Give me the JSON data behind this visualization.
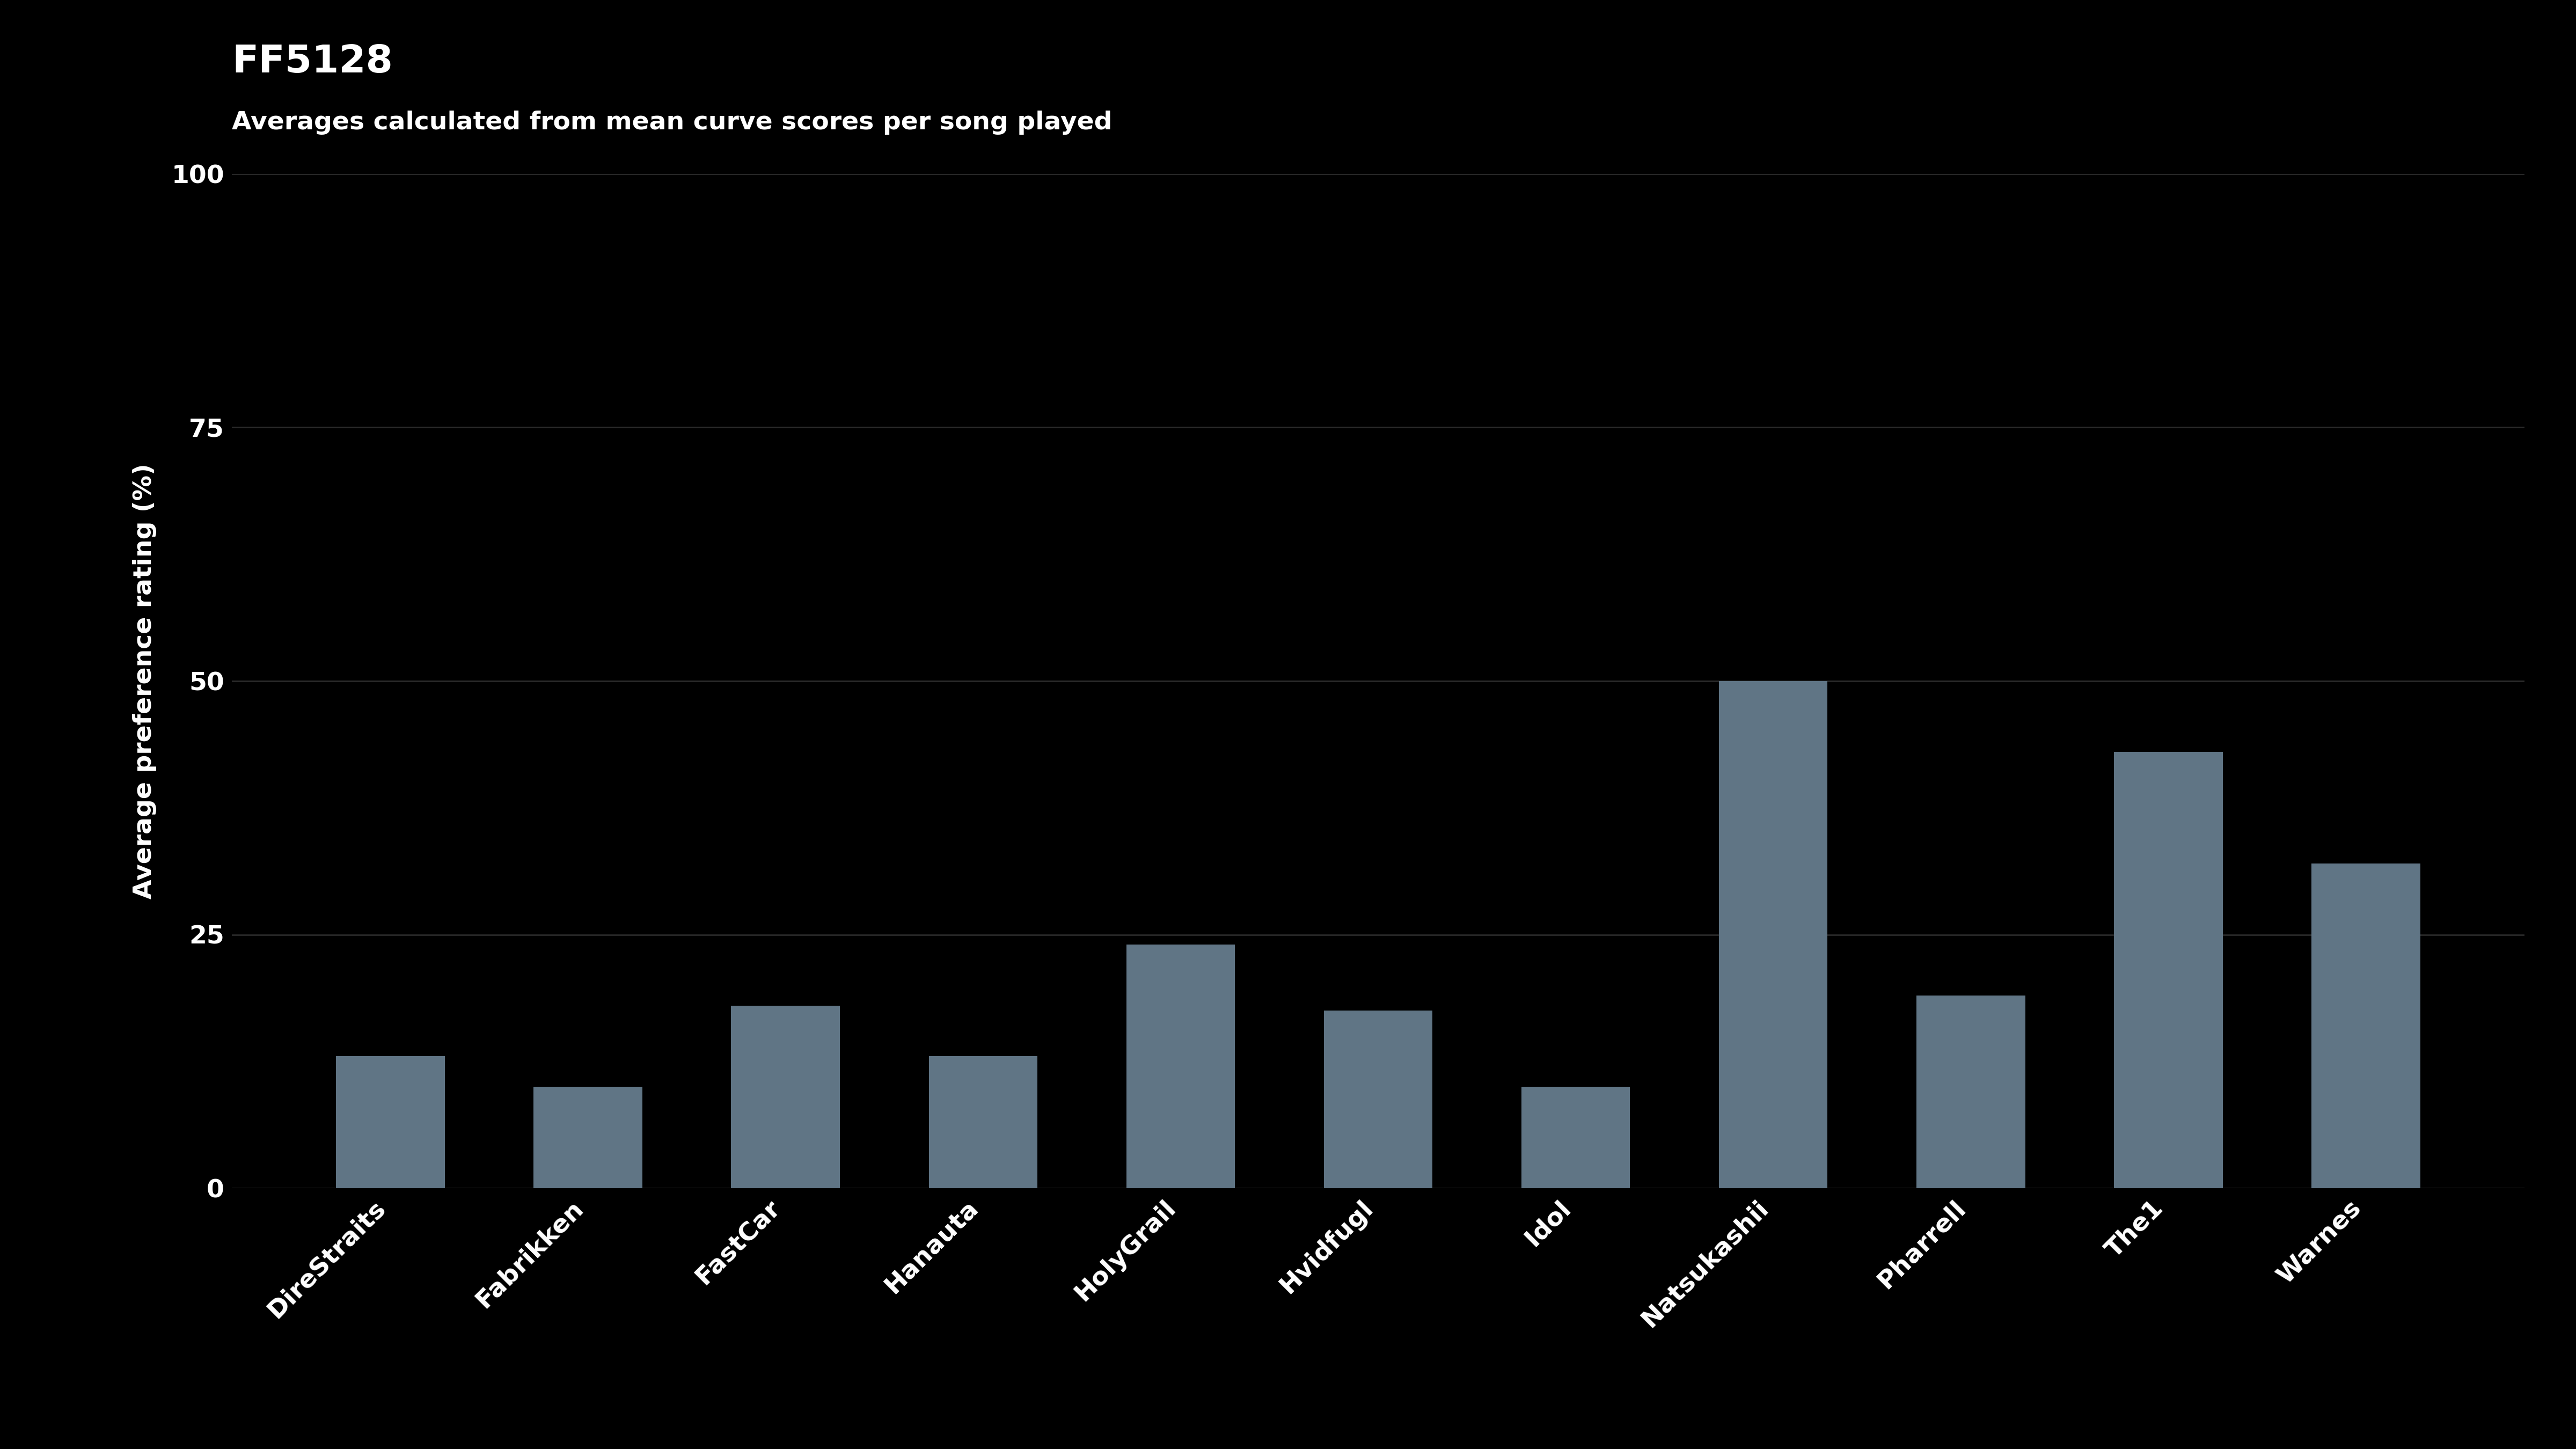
{
  "title": "FF5128",
  "subtitle": "Averages calculated from mean curve scores per song played",
  "ylabel": "Average preference rating (%)",
  "categories": [
    "DireStraits",
    "Fabrikken",
    "FastCar",
    "Hanauta",
    "HolyGrail",
    "Hvidfugl",
    "Idol",
    "Natsukashii",
    "Pharrell",
    "The1",
    "Warnes"
  ],
  "values": [
    13.0,
    10.0,
    18.0,
    13.0,
    24.0,
    17.5,
    10.0,
    50.0,
    19.0,
    43.0,
    32.0
  ],
  "bar_color": "#607585",
  "background_color": "#000000",
  "text_color": "#ffffff",
  "grid_color": "#2a2a2a",
  "ylim": [
    0,
    100
  ],
  "yticks": [
    0,
    25,
    50,
    75,
    100
  ],
  "title_fontsize": 52,
  "subtitle_fontsize": 34,
  "ylabel_fontsize": 34,
  "tick_fontsize": 34,
  "xtick_fontsize": 34,
  "bar_width": 0.55
}
